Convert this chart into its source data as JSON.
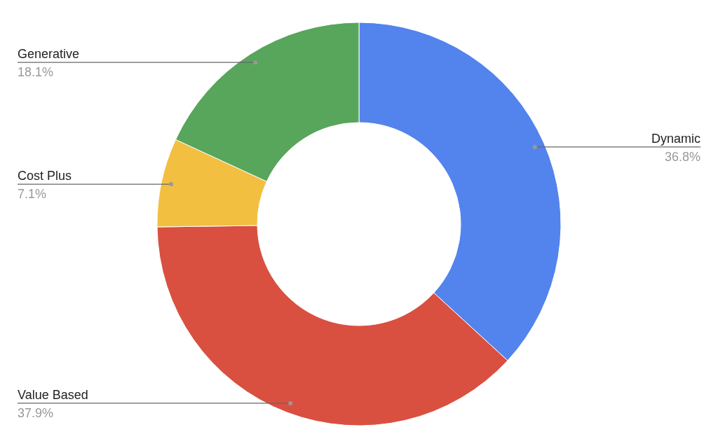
{
  "chart_data": {
    "type": "donut",
    "categories": [
      "Dynamic",
      "Value Based",
      "Cost Plus",
      "Generative"
    ],
    "values": [
      36.8,
      37.9,
      7.1,
      18.1
    ],
    "colors": [
      "#5383ec",
      "#d95040",
      "#f2bf41",
      "#58a55c"
    ],
    "value_labels": [
      "36.8%",
      "37.9%",
      "7.1%",
      "18.1%"
    ]
  }
}
